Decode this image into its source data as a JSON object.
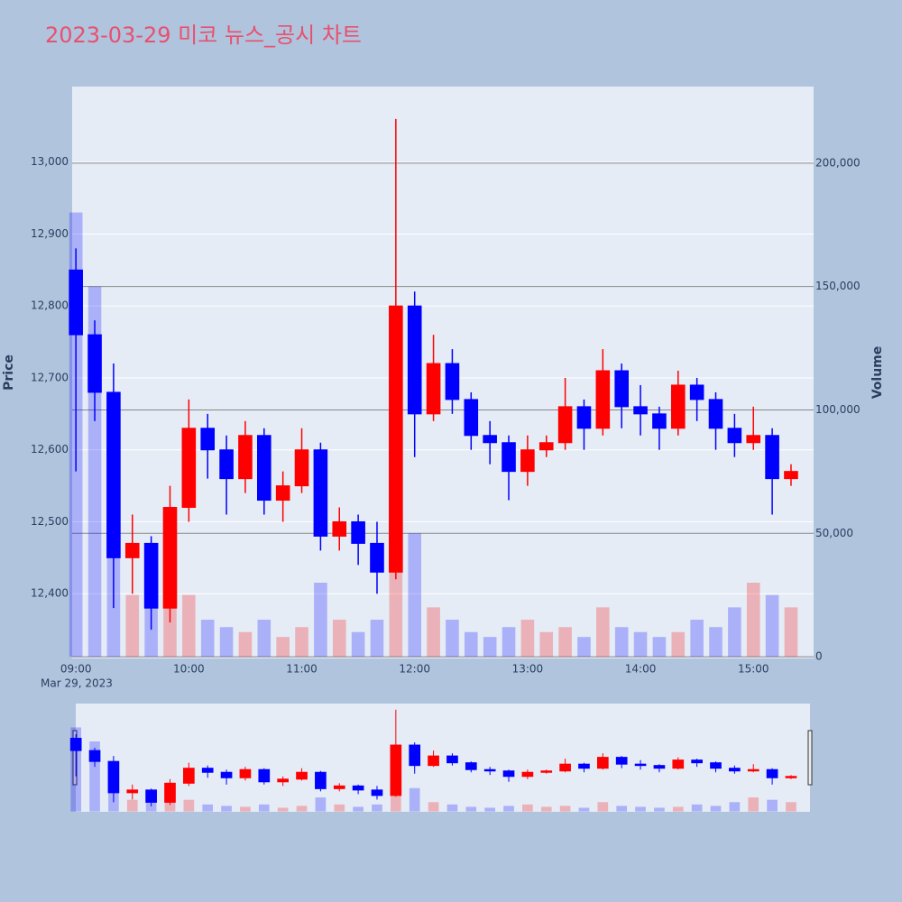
{
  "chart_data": {
    "type": "candlestick",
    "title": "2023-03-29 미코 뉴스_공시 차트",
    "y_title": "Price",
    "y2_title": "Volume",
    "x_date_label": "Mar 29, 2023",
    "increasing_color": "#ff0000",
    "decreasing_color": "#0000ff",
    "x": [
      "09:00",
      "09:10",
      "09:20",
      "09:30",
      "09:40",
      "09:50",
      "10:00",
      "10:10",
      "10:20",
      "10:30",
      "10:40",
      "10:50",
      "11:00",
      "11:10",
      "11:20",
      "11:30",
      "11:40",
      "11:50",
      "12:00",
      "12:10",
      "12:20",
      "12:30",
      "12:40",
      "12:50",
      "13:00",
      "13:10",
      "13:20",
      "13:30",
      "13:40",
      "13:50",
      "14:00",
      "14:10",
      "14:20",
      "14:30",
      "14:40",
      "14:50",
      "15:00",
      "15:10",
      "15:20"
    ],
    "open": [
      12850,
      12760,
      12680,
      12450,
      12470,
      12380,
      12520,
      12630,
      12600,
      12560,
      12620,
      12530,
      12550,
      12600,
      12480,
      12500,
      12470,
      12430,
      12800,
      12650,
      12720,
      12670,
      12620,
      12610,
      12570,
      12600,
      12610,
      12660,
      12630,
      12710,
      12660,
      12650,
      12630,
      12690,
      12670,
      12630,
      12610,
      12620,
      12560
    ],
    "high": [
      12880,
      12780,
      12720,
      12510,
      12480,
      12550,
      12670,
      12650,
      12620,
      12640,
      12630,
      12570,
      12630,
      12610,
      12520,
      12510,
      12500,
      13060,
      12820,
      12760,
      12740,
      12680,
      12640,
      12620,
      12620,
      12620,
      12700,
      12670,
      12740,
      12720,
      12690,
      12660,
      12710,
      12700,
      12680,
      12650,
      12660,
      12630,
      12580
    ],
    "low": [
      12570,
      12640,
      12380,
      12400,
      12350,
      12360,
      12500,
      12560,
      12510,
      12540,
      12510,
      12500,
      12540,
      12460,
      12460,
      12440,
      12400,
      12420,
      12590,
      12640,
      12650,
      12600,
      12580,
      12530,
      12550,
      12590,
      12600,
      12600,
      12620,
      12630,
      12620,
      12600,
      12620,
      12640,
      12600,
      12590,
      12600,
      12510,
      12550
    ],
    "close": [
      12760,
      12680,
      12450,
      12470,
      12380,
      12520,
      12630,
      12600,
      12560,
      12620,
      12530,
      12550,
      12600,
      12480,
      12500,
      12470,
      12430,
      12800,
      12650,
      12720,
      12670,
      12620,
      12610,
      12570,
      12600,
      12610,
      12660,
      12630,
      12710,
      12660,
      12650,
      12630,
      12690,
      12670,
      12630,
      12610,
      12620,
      12560,
      12570
    ],
    "volume": [
      180000,
      150000,
      40000,
      25000,
      20000,
      30000,
      25000,
      15000,
      12000,
      10000,
      15000,
      8000,
      12000,
      30000,
      15000,
      10000,
      15000,
      110000,
      50000,
      20000,
      15000,
      10000,
      8000,
      12000,
      15000,
      10000,
      12000,
      8000,
      20000,
      12000,
      10000,
      8000,
      10000,
      15000,
      12000,
      20000,
      30000,
      25000,
      20000
    ],
    "xlim": [
      "08:58",
      "15:32"
    ],
    "xticks": [
      "09:00",
      "10:00",
      "11:00",
      "12:00",
      "13:00",
      "14:00",
      "15:00"
    ],
    "ylim": [
      12310,
      13105
    ],
    "yticks": [
      {
        "value": 12400,
        "label": "12,400"
      },
      {
        "value": 12500,
        "label": "12,500"
      },
      {
        "value": 12600,
        "label": "12,600"
      },
      {
        "value": 12700,
        "label": "12,700"
      },
      {
        "value": 12800,
        "label": "12,800"
      },
      {
        "value": 12900,
        "label": "12,900"
      },
      {
        "value": 13000,
        "label": "13,000"
      }
    ],
    "y2lim": [
      -700,
      231000
    ],
    "y2ticks": [
      0,
      {
        "value": 50000,
        "label": "50,000"
      },
      {
        "value": 100000,
        "label": "100,000"
      },
      {
        "value": 150000,
        "label": "150,000"
      },
      {
        "value": 200000,
        "label": "200,000"
      }
    ],
    "grid": true
  }
}
